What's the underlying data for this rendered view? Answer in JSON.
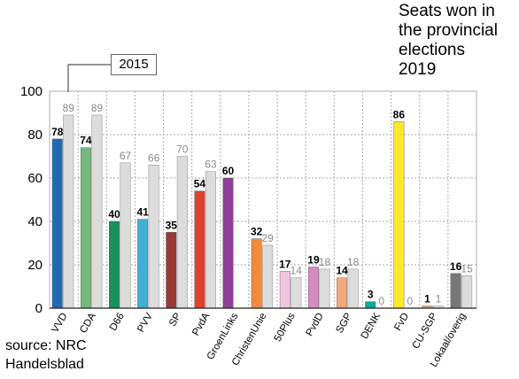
{
  "title_lines": [
    "Seats won in",
    "the provincial",
    "elections",
    "2019"
  ],
  "source_lines": [
    "source: NRC",
    "Handelsblad"
  ],
  "legend_label": "2015",
  "chart_data": {
    "type": "bar",
    "title": "Seats won in the provincial elections 2019",
    "categories": [
      "VVD",
      "CDA",
      "D66",
      "PVV",
      "SP",
      "PvdA",
      "GroenLinks",
      "ChristenUnie",
      "50Plus",
      "PvdD",
      "SGP",
      "DENK",
      "FvD",
      "CU-SGP",
      "Lokaal/overig"
    ],
    "series": [
      {
        "values": [
          78,
          74,
          40,
          41,
          35,
          54,
          60,
          32,
          17,
          19,
          14,
          3,
          86,
          1,
          16
        ],
        "colors": [
          "#1f6bb3",
          "#76b77b",
          "#16925a",
          "#3fafd6",
          "#9a3a36",
          "#e0412d",
          "#8e3f98",
          "#f08a3c",
          "#efc6de",
          "#d68bc3",
          "#f5a77d",
          "#0da89a",
          "#ffe82a",
          "#f0a060",
          "#777777"
        ]
      },
      {
        "name": "2015",
        "values": [
          89,
          89,
          67,
          66,
          70,
          63,
          null,
          29,
          14,
          18,
          18,
          0,
          0,
          1,
          15
        ],
        "color": "#dcdcdc"
      }
    ],
    "ylim": [
      0,
      100
    ],
    "yticks": [
      0,
      20,
      40,
      60,
      80,
      100
    ],
    "xlabel": "",
    "ylabel": "",
    "grid": true,
    "legend_position": "top-left"
  }
}
